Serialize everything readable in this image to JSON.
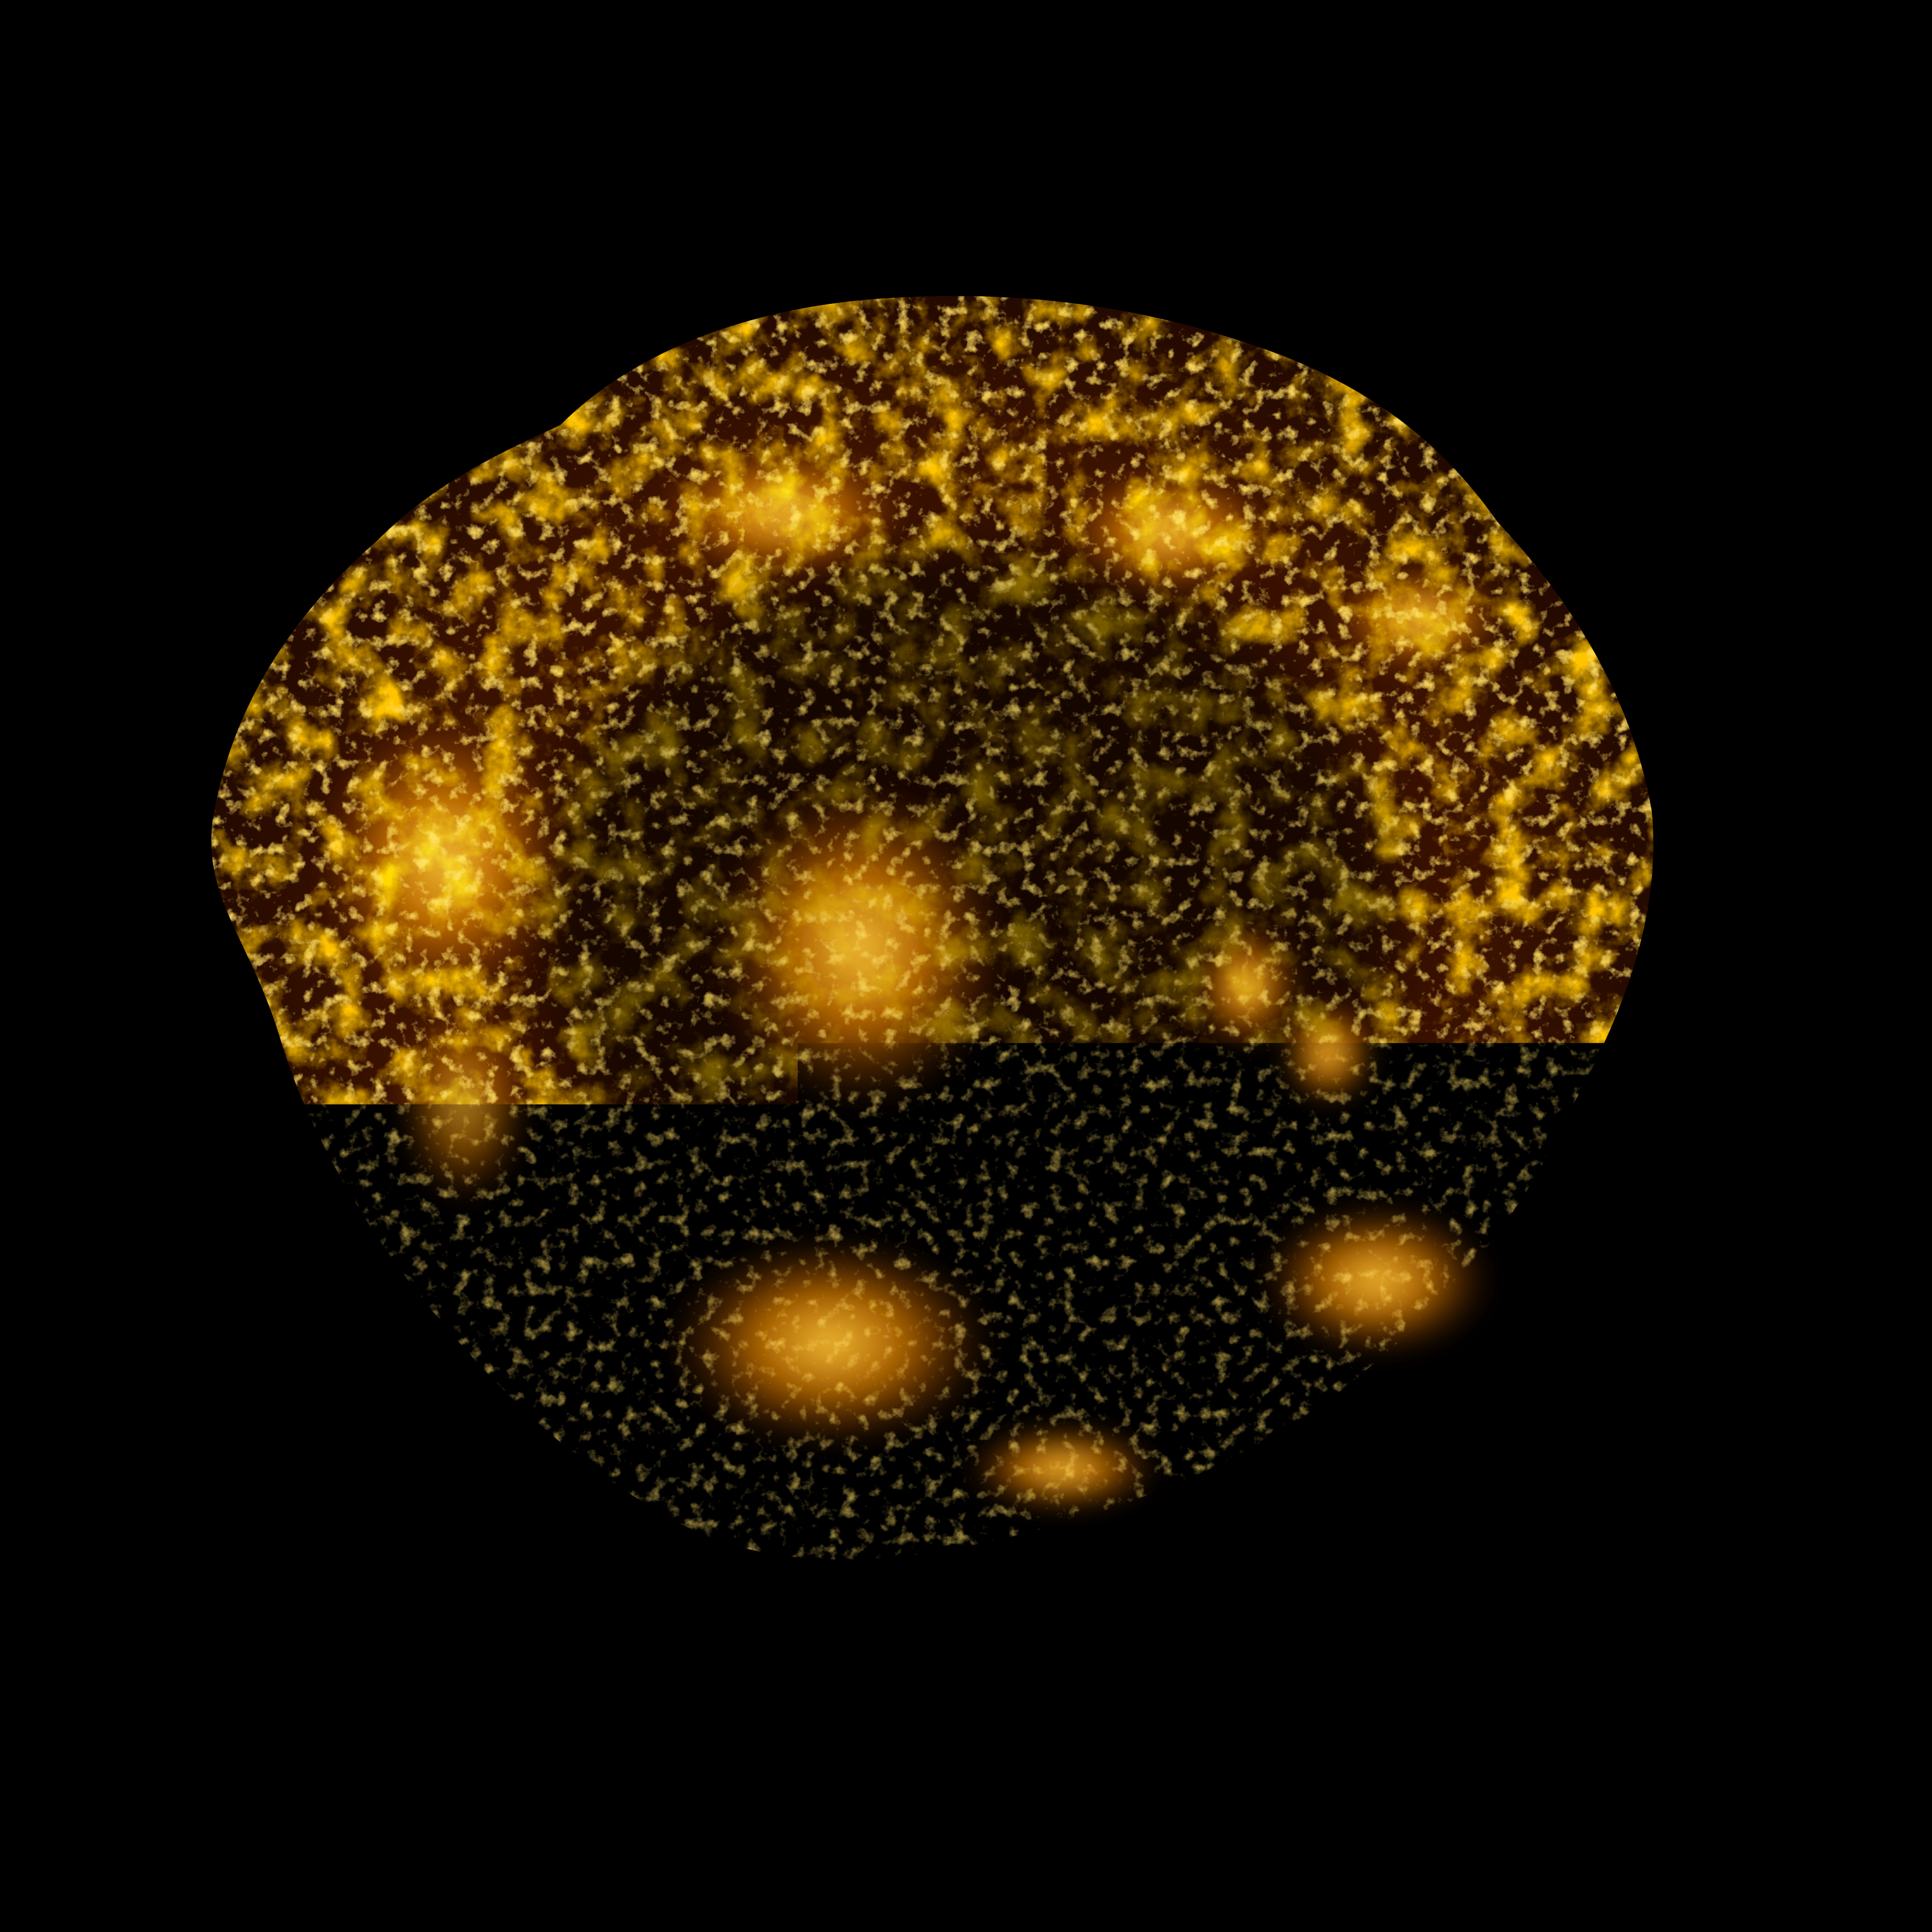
{
  "scene": {
    "subject": "glowing-nebula",
    "background_color": "#000000",
    "palette": {
      "deep": "#1a0600",
      "dark_ember": "#4a1500",
      "ember": "#8a3200",
      "orange": "#d96d00",
      "bright": "#ffa319",
      "hot": "#ffd45a"
    }
  }
}
